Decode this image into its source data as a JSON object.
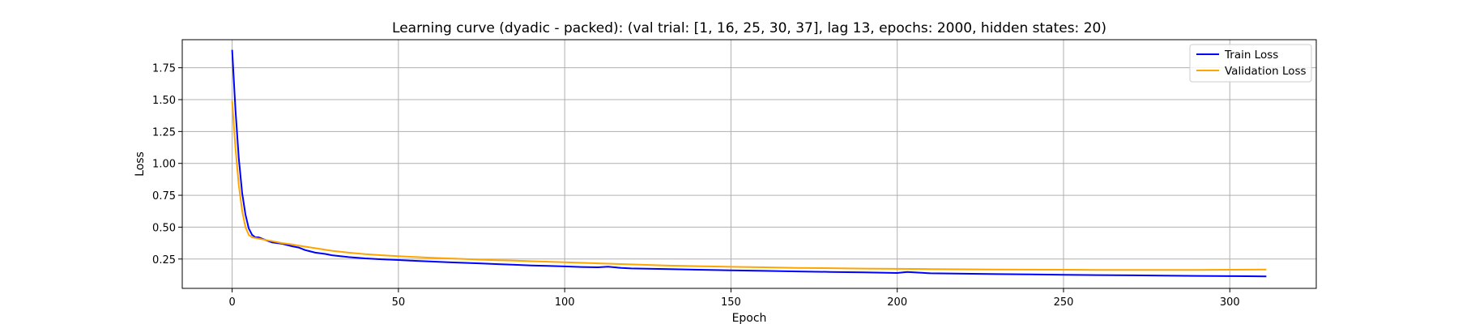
{
  "chart_data": {
    "type": "line",
    "title": "Learning curve (dyadic - packed): (val trial: [1, 16, 25, 30, 37], lag 13, epochs: 2000, hidden states: 20)",
    "xlabel": "Epoch",
    "ylabel": "Loss",
    "xlim": [
      -15,
      326
    ],
    "ylim": [
      0.02,
      1.97
    ],
    "xticks": [
      0,
      50,
      100,
      150,
      200,
      250,
      300
    ],
    "yticks": [
      0.25,
      0.5,
      0.75,
      1.0,
      1.25,
      1.5,
      1.75
    ],
    "xtick_labels": [
      "0",
      "50",
      "100",
      "150",
      "200",
      "250",
      "300"
    ],
    "ytick_labels": [
      "0.25",
      "0.50",
      "0.75",
      "1.00",
      "1.25",
      "1.50",
      "1.75"
    ],
    "grid": true,
    "legend_position": "upper right",
    "series": [
      {
        "name": "Train Loss",
        "color": "#0000ff",
        "x": [
          0,
          1,
          2,
          3,
          4,
          5,
          6,
          7,
          8,
          10,
          12,
          15,
          18,
          20,
          22,
          25,
          28,
          30,
          35,
          40,
          45,
          50,
          55,
          60,
          65,
          70,
          75,
          80,
          85,
          90,
          95,
          100,
          105,
          110,
          113,
          117,
          120,
          130,
          140,
          150,
          160,
          170,
          180,
          190,
          200,
          203,
          210,
          220,
          230,
          240,
          250,
          260,
          270,
          280,
          290,
          300,
          305,
          311
        ],
        "y": [
          1.89,
          1.42,
          1.04,
          0.77,
          0.6,
          0.49,
          0.44,
          0.42,
          0.42,
          0.4,
          0.38,
          0.37,
          0.35,
          0.34,
          0.32,
          0.3,
          0.29,
          0.28,
          0.265,
          0.255,
          0.248,
          0.242,
          0.236,
          0.23,
          0.225,
          0.22,
          0.215,
          0.21,
          0.205,
          0.2,
          0.196,
          0.192,
          0.188,
          0.185,
          0.19,
          0.18,
          0.176,
          0.172,
          0.166,
          0.161,
          0.157,
          0.153,
          0.149,
          0.145,
          0.141,
          0.148,
          0.138,
          0.135,
          0.132,
          0.13,
          0.127,
          0.124,
          0.122,
          0.12,
          0.118,
          0.116,
          0.115,
          0.114
        ]
      },
      {
        "name": "Validation Loss",
        "color": "#ffa500",
        "x": [
          0,
          1,
          2,
          3,
          4,
          5,
          6,
          7,
          8,
          10,
          12,
          15,
          18,
          20,
          25,
          30,
          35,
          40,
          45,
          50,
          55,
          60,
          65,
          70,
          75,
          80,
          85,
          90,
          95,
          100,
          110,
          120,
          130,
          140,
          150,
          160,
          170,
          180,
          190,
          200,
          210,
          220,
          230,
          240,
          250,
          260,
          270,
          280,
          290,
          300,
          311
        ],
        "y": [
          1.49,
          1.12,
          0.83,
          0.63,
          0.5,
          0.44,
          0.42,
          0.415,
          0.41,
          0.4,
          0.39,
          0.375,
          0.365,
          0.355,
          0.335,
          0.315,
          0.3,
          0.288,
          0.28,
          0.272,
          0.266,
          0.26,
          0.255,
          0.25,
          0.245,
          0.241,
          0.237,
          0.233,
          0.229,
          0.225,
          0.216,
          0.208,
          0.2,
          0.194,
          0.189,
          0.185,
          0.181,
          0.178,
          0.175,
          0.173,
          0.171,
          0.169,
          0.168,
          0.167,
          0.166,
          0.165,
          0.165,
          0.165,
          0.165,
          0.166,
          0.168
        ]
      }
    ]
  }
}
